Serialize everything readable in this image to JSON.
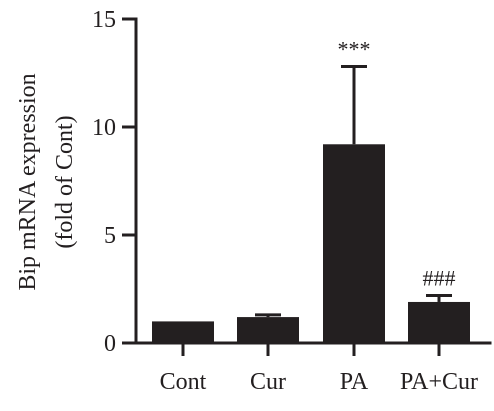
{
  "chart_data": {
    "type": "bar",
    "title": "",
    "xlabel": "",
    "ylabel_lines": [
      "Bip mRNA expression",
      "(fold of Cont)"
    ],
    "categories": [
      "Cont",
      "Cur",
      "PA",
      "PA+Cur"
    ],
    "values": [
      1.0,
      1.2,
      9.2,
      1.9
    ],
    "error_upper": [
      0.0,
      0.1,
      3.6,
      0.3
    ],
    "annotations": [
      "",
      "",
      "***",
      "###"
    ],
    "ylim": [
      0,
      15
    ],
    "yticks": [
      0,
      5,
      10,
      15
    ],
    "grid": false,
    "colors": {
      "bar": "#231f20",
      "axis": "#231f20"
    }
  }
}
